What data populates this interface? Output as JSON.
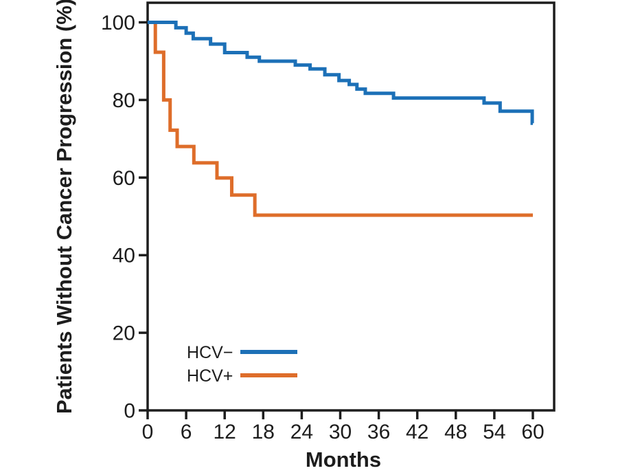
{
  "figure": {
    "background_color": "#ffffff",
    "axis_color": "#1d1d1d",
    "text_color": "#1d1d1d"
  },
  "chart_data": {
    "type": "line",
    "subtype": "kaplan-meier-step",
    "title": "",
    "xlabel": "Months",
    "ylabel": "Patients Without Cancer Progression (%)",
    "xlim": [
      0,
      63.3
    ],
    "ylim": [
      0,
      105
    ],
    "xticks": [
      0,
      6,
      12,
      18,
      24,
      30,
      36,
      42,
      48,
      54,
      60
    ],
    "yticks": [
      0,
      20,
      40,
      60,
      80,
      100
    ],
    "grid": false,
    "legend_position": "inside-lower-left",
    "series": [
      {
        "name": "HCV−",
        "color": "#1c70b7",
        "end_month": 60,
        "steps": [
          [
            0,
            100
          ],
          [
            4.4,
            98.6
          ],
          [
            6.0,
            97.2
          ],
          [
            7.1,
            95.8
          ],
          [
            9.8,
            94.4
          ],
          [
            12.0,
            92.2
          ],
          [
            15.5,
            91.0
          ],
          [
            17.4,
            90.0
          ],
          [
            23.0,
            89.0
          ],
          [
            25.3,
            88.0
          ],
          [
            27.6,
            86.5
          ],
          [
            29.8,
            85.0
          ],
          [
            31.4,
            84.0
          ],
          [
            32.6,
            82.8
          ],
          [
            33.9,
            81.7
          ],
          [
            38.3,
            80.5
          ],
          [
            52.4,
            79.2
          ],
          [
            54.9,
            77.1
          ],
          [
            59.9,
            74.0
          ]
        ]
      },
      {
        "name": "HCV+",
        "color": "#de6d2a",
        "end_month": 60,
        "steps": [
          [
            0,
            100
          ],
          [
            1.2,
            92.3
          ],
          [
            2.5,
            80.0
          ],
          [
            3.5,
            72.2
          ],
          [
            4.6,
            68.0
          ],
          [
            7.2,
            63.8
          ],
          [
            10.8,
            59.9
          ],
          [
            13.1,
            55.5
          ],
          [
            16.7,
            50.3
          ]
        ]
      }
    ]
  }
}
